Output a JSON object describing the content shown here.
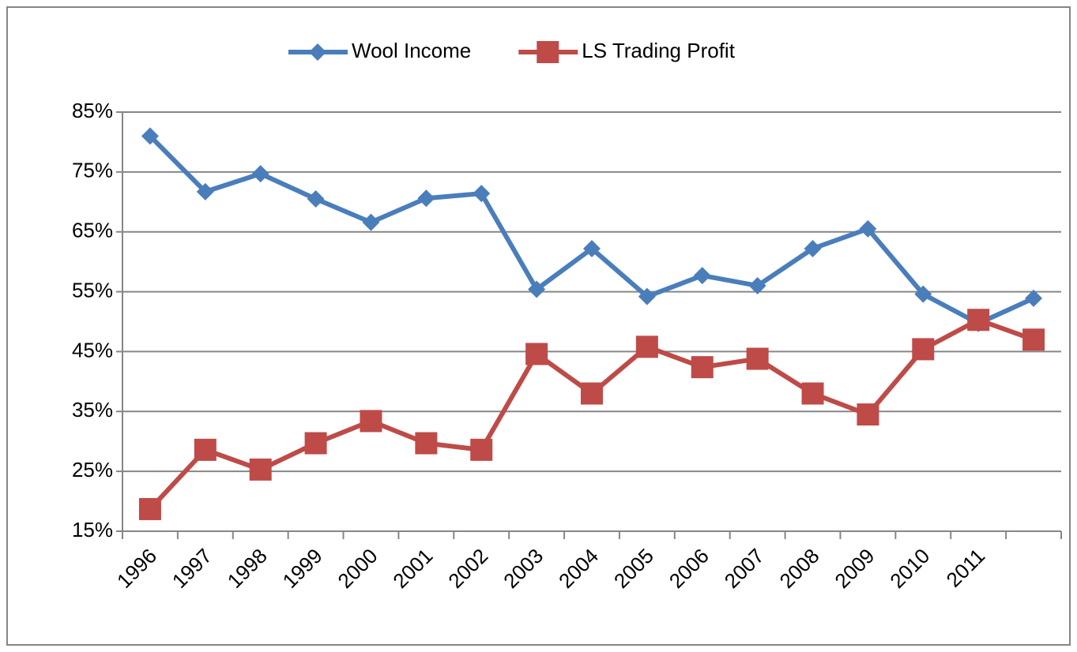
{
  "chart_data": {
    "type": "line",
    "categories": [
      "1996",
      "1997",
      "1998",
      "1999",
      "2000",
      "2001",
      "2002",
      "2003",
      "2004",
      "2005",
      "2006",
      "2007",
      "2008",
      "2009",
      "2010",
      "2011",
      null
    ],
    "series": [
      {
        "name": "Wool Income",
        "color": "#4a7ebb",
        "marker": "diamond",
        "values": [
          81,
          71.7,
          74.7,
          70.5,
          66.6,
          70.6,
          71.4,
          55.4,
          62.2,
          54.2,
          57.7,
          56,
          62.2,
          65.5,
          54.6,
          49.7,
          53.9
        ]
      },
      {
        "name": "LS Trading Profit",
        "color": "#be4b48",
        "marker": "square",
        "values": [
          18.7,
          28.6,
          25.3,
          29.7,
          33.4,
          29.7,
          28.6,
          44.6,
          38,
          45.8,
          42.4,
          43.8,
          38,
          34.5,
          45.4,
          50.3,
          47
        ]
      }
    ],
    "ylim": [
      15,
      85
    ],
    "yticks": [
      {
        "value": 15,
        "label": "15%"
      },
      {
        "value": 25,
        "label": "25%"
      },
      {
        "value": 35,
        "label": "35%"
      },
      {
        "value": 45,
        "label": "45%"
      },
      {
        "value": 55,
        "label": "55%"
      },
      {
        "value": 65,
        "label": "65%"
      },
      {
        "value": 75,
        "label": "75%"
      },
      {
        "value": 85,
        "label": "85%"
      }
    ],
    "grid": true,
    "legend": "top"
  }
}
